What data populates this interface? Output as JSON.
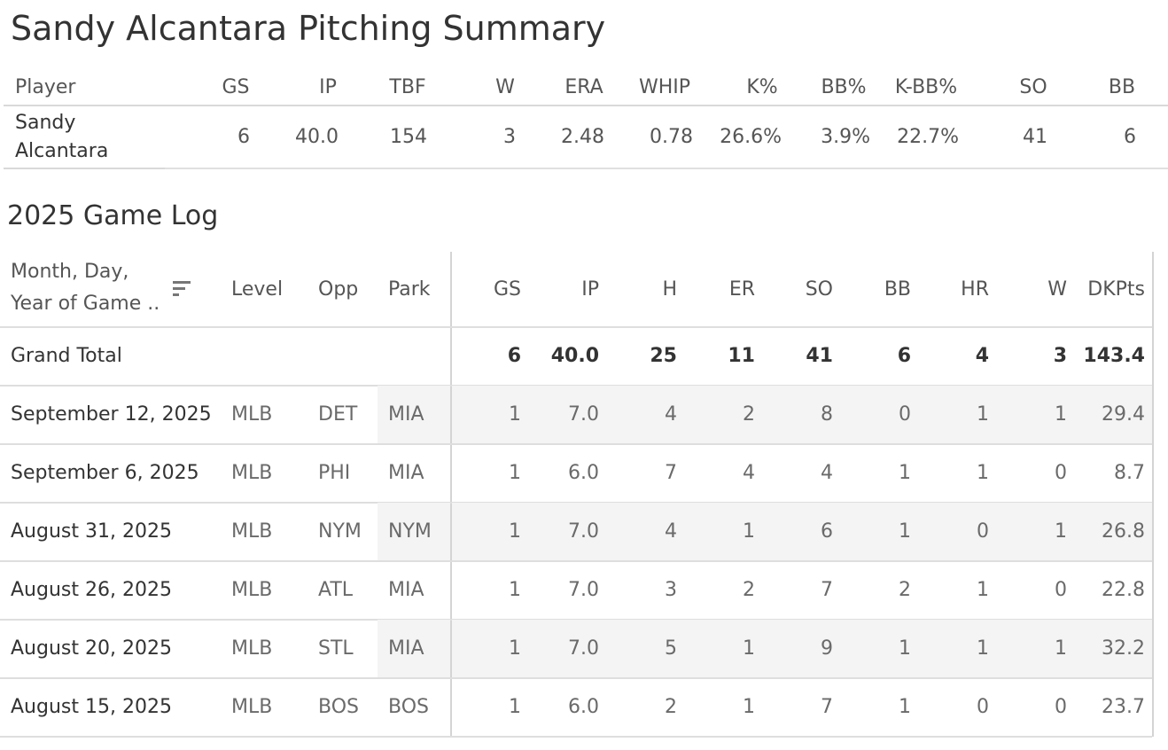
{
  "title": "Sandy Alcantara Pitching Summary",
  "summary": {
    "headers": [
      "Player",
      "GS",
      "IP",
      "TBF",
      "W",
      "ERA",
      "WHIP",
      "K%",
      "BB%",
      "K-BB%",
      "SO",
      "BB"
    ],
    "player_line1": "Sandy",
    "player_line2": "Alcantara",
    "values": [
      "6",
      "40.0",
      "154",
      "3",
      "2.48",
      "0.78",
      "26.6%",
      "3.9%",
      "22.7%",
      "41",
      "6"
    ]
  },
  "gamelog": {
    "title": "2025 Game Log",
    "date_header_line1": "Month, Day,",
    "date_header_line2": "Year of Game ..",
    "sort_icon": "sort-descending-icon",
    "headers": [
      "Level",
      "Opp",
      "Park",
      "GS",
      "IP",
      "H",
      "ER",
      "SO",
      "BB",
      "HR",
      "W",
      "DKPts"
    ],
    "grand_total": {
      "label": "Grand Total",
      "values": [
        "6",
        "40.0",
        "25",
        "11",
        "41",
        "6",
        "4",
        "3",
        "143.4"
      ]
    },
    "rows": [
      {
        "date": "September 12, 2025",
        "level": "MLB",
        "opp": "DET",
        "park": "MIA",
        "values": [
          "1",
          "7.0",
          "4",
          "2",
          "8",
          "0",
          "1",
          "1",
          "29.4"
        ]
      },
      {
        "date": "September 6, 2025",
        "level": "MLB",
        "opp": "PHI",
        "park": "MIA",
        "values": [
          "1",
          "6.0",
          "7",
          "4",
          "4",
          "1",
          "1",
          "0",
          "8.7"
        ]
      },
      {
        "date": "August 31, 2025",
        "level": "MLB",
        "opp": "NYM",
        "park": "NYM",
        "values": [
          "1",
          "7.0",
          "4",
          "1",
          "6",
          "1",
          "0",
          "1",
          "26.8"
        ]
      },
      {
        "date": "August 26, 2025",
        "level": "MLB",
        "opp": "ATL",
        "park": "MIA",
        "values": [
          "1",
          "7.0",
          "3",
          "2",
          "7",
          "2",
          "1",
          "0",
          "22.8"
        ]
      },
      {
        "date": "August 20, 2025",
        "level": "MLB",
        "opp": "STL",
        "park": "MIA",
        "values": [
          "1",
          "7.0",
          "5",
          "1",
          "9",
          "1",
          "1",
          "1",
          "32.2"
        ]
      },
      {
        "date": "August 15, 2025",
        "level": "MLB",
        "opp": "BOS",
        "park": "BOS",
        "values": [
          "1",
          "6.0",
          "2",
          "1",
          "7",
          "1",
          "0",
          "0",
          "23.7"
        ]
      }
    ]
  }
}
